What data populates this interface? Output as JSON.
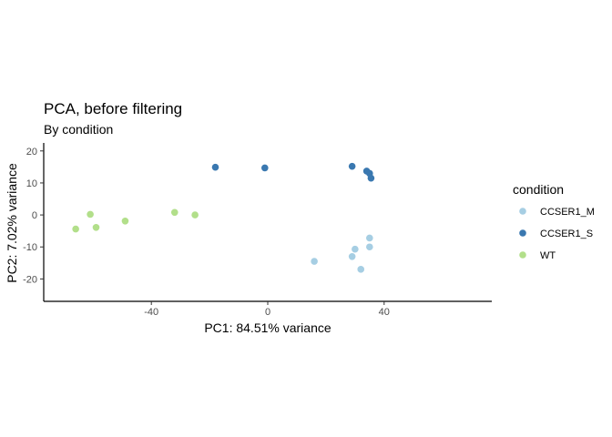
{
  "chart_data": {
    "type": "scatter",
    "title": "PCA, before filtering",
    "subtitle": "By condition",
    "xlabel": "PC1: 84.51% variance",
    "ylabel": "PC2: 7.02% variance",
    "xlim": [
      -77,
      77
    ],
    "ylim": [
      -27,
      22.5
    ],
    "xticks": [
      -40,
      0,
      40
    ],
    "xtick_labels": [
      "-40",
      "0",
      "40"
    ],
    "yticks": [
      -20,
      -10,
      0,
      10,
      20
    ],
    "ytick_labels": [
      "-20",
      "-10",
      "0",
      "10",
      "20"
    ],
    "grid": false,
    "legend": {
      "title": "condition",
      "placement": "right"
    },
    "series": [
      {
        "name": "CCSER1_M",
        "color": "#a6cee3",
        "points": [
          {
            "x": 16,
            "y": -14.5
          },
          {
            "x": 29,
            "y": -13
          },
          {
            "x": 30,
            "y": -10.7
          },
          {
            "x": 32,
            "y": -17
          },
          {
            "x": 35,
            "y": -7.2
          },
          {
            "x": 35,
            "y": -10
          }
        ]
      },
      {
        "name": "CCSER1_S",
        "color": "#3a78b0",
        "points": [
          {
            "x": -18,
            "y": 14.9
          },
          {
            "x": -1,
            "y": 14.7
          },
          {
            "x": 29,
            "y": 15.2
          },
          {
            "x": 34,
            "y": 13.7
          },
          {
            "x": 35,
            "y": 13
          },
          {
            "x": 35.5,
            "y": 11.5
          }
        ]
      },
      {
        "name": "WT",
        "color": "#b2df8a",
        "points": [
          {
            "x": -66,
            "y": -4.4
          },
          {
            "x": -61,
            "y": 0.2
          },
          {
            "x": -59,
            "y": -3.9
          },
          {
            "x": -49,
            "y": -1.9
          },
          {
            "x": -32,
            "y": 0.8
          },
          {
            "x": -25,
            "y": 0
          }
        ]
      }
    ]
  }
}
